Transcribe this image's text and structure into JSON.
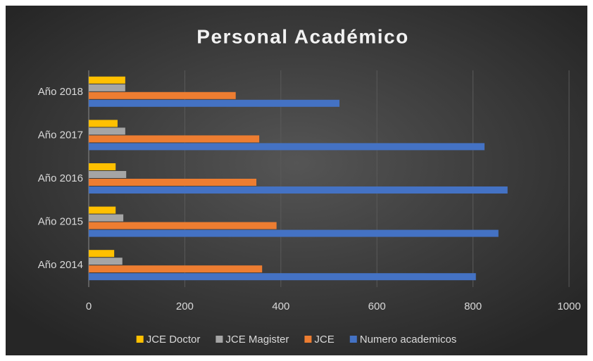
{
  "chart_data": {
    "type": "hbar",
    "title": "Personal Académico",
    "categories": [
      "Año 2014",
      "Año 2015",
      "Año 2016",
      "Año 2017",
      "Año 2018"
    ],
    "series": [
      {
        "name": "JCE Doctor",
        "color": "#ffc000",
        "values": [
          53,
          56,
          56,
          60,
          76
        ]
      },
      {
        "name": "JCE Magister",
        "color": "#a5a5a5",
        "values": [
          70,
          72,
          78,
          76,
          76
        ]
      },
      {
        "name": "JCE",
        "color": "#ed7d31",
        "values": [
          361,
          391,
          349,
          355,
          306
        ]
      },
      {
        "name": "Numero academicos",
        "color": "#4472c4",
        "values": [
          806,
          853,
          872,
          824,
          522
        ]
      }
    ],
    "xlim": [
      0,
      1000
    ],
    "xticks": [
      0,
      200,
      400,
      600,
      800,
      1000
    ],
    "grid": true,
    "legend": "bottom"
  }
}
